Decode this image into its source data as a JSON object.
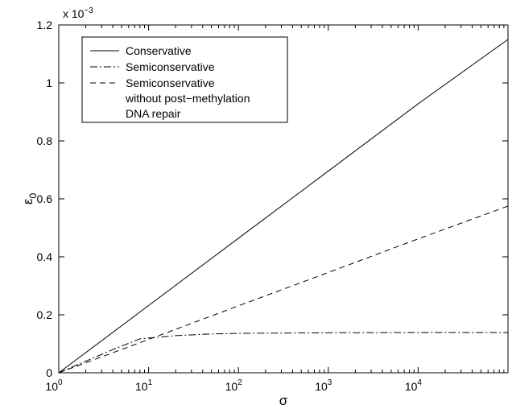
{
  "chart_data": {
    "type": "line",
    "xscale": "log",
    "xlim": [
      1,
      100000
    ],
    "ylim": [
      0,
      0.0012
    ],
    "xlabel": "σ",
    "ylabel_main": "ε",
    "ylabel_sub": "0",
    "y_multiplier": {
      "base": "x 10",
      "exp": "−3"
    },
    "x_ticks": [
      {
        "value": 1,
        "base": "10",
        "exp": "0"
      },
      {
        "value": 10,
        "base": "10",
        "exp": "1"
      },
      {
        "value": 100,
        "base": "10",
        "exp": "2"
      },
      {
        "value": 1000,
        "base": "10",
        "exp": "3"
      },
      {
        "value": 10000,
        "base": "10",
        "exp": "4"
      }
    ],
    "y_ticks": [
      {
        "value": 0,
        "label": "0"
      },
      {
        "value": 0.0002,
        "label": "0.2"
      },
      {
        "value": 0.0004,
        "label": "0.4"
      },
      {
        "value": 0.0006,
        "label": "0.6"
      },
      {
        "value": 0.0008,
        "label": "0.8"
      },
      {
        "value": 0.001,
        "label": "1"
      },
      {
        "value": 0.0012,
        "label": "1.2"
      }
    ],
    "grid": false,
    "legend_position": "top-left",
    "series": [
      {
        "name": "Conservative",
        "dash": "solid",
        "x": [
          1,
          10,
          100,
          1000,
          10000,
          100000
        ],
        "y": [
          0,
          0.000232,
          0.000464,
          0.000696,
          0.000928,
          0.00115
        ]
      },
      {
        "name": "Semiconservative",
        "dash": "dashdot",
        "x": [
          1,
          2,
          4,
          8,
          20,
          50,
          100,
          1000,
          10000,
          100000
        ],
        "y": [
          0,
          4e-05,
          8e-05,
          0.000117,
          0.000128,
          0.000134,
          0.000136,
          0.000138,
          0.000139,
          0.000139
        ]
      },
      {
        "name": "Semiconservative",
        "name_lines": [
          "Semiconservative",
          "without post−methylation",
          "DNA repair"
        ],
        "dash": "dashed",
        "x": [
          1,
          10,
          100,
          1000,
          10000,
          100000
        ],
        "y": [
          0,
          0.000115,
          0.000231,
          0.000346,
          0.000462,
          0.000575
        ]
      }
    ]
  }
}
